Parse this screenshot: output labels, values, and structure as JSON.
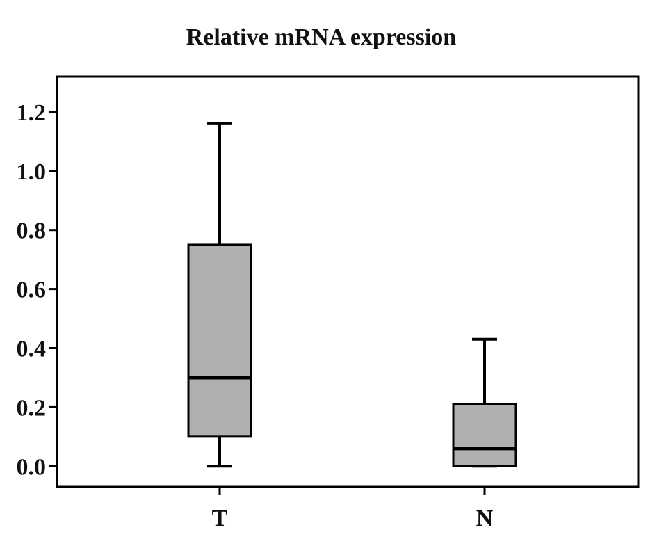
{
  "chart_data": {
    "type": "box",
    "title": "Relative mRNA expression",
    "xlabel": "",
    "ylabel": "",
    "ylim": [
      -0.07,
      1.32
    ],
    "yticks": [
      "0.0",
      "0.2",
      "0.4",
      "0.6",
      "0.8",
      "1.0",
      "1.2"
    ],
    "grid": false,
    "legend": "none",
    "box_color": "#b0b0b0",
    "categories": [
      "T",
      "N"
    ],
    "boxes": [
      {
        "category": "T",
        "whisker_low": 0.0,
        "q1": 0.1,
        "median": 0.3,
        "q3": 0.75,
        "whisker_high": 1.16
      },
      {
        "category": "N",
        "whisker_low": 0.0,
        "q1": 0.0,
        "median": 0.06,
        "q3": 0.21,
        "whisker_high": 0.43
      }
    ]
  }
}
